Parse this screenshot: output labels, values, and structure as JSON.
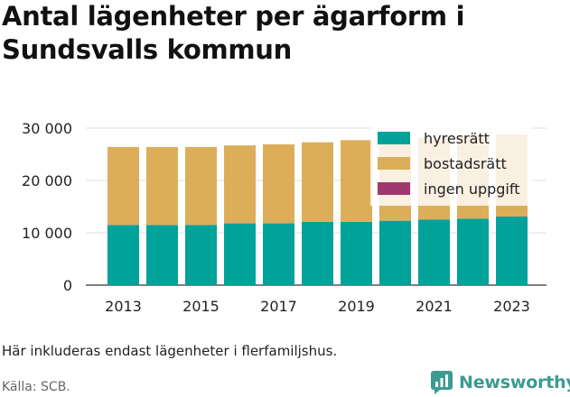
{
  "title": "Antal lägenheter per ägarform i Sundsvalls kommun",
  "note": "Här inkluderas endast lägenheter i flerfamiljshus.",
  "source": "Källa: SCB.",
  "brand": "Newsworthy",
  "colors": {
    "hyresratt": "#00a29a",
    "bostadsratt": "#dcae5a",
    "ingen_uppgift": "#a0376e",
    "grid": "#dddddd",
    "brand": "#3b9b8f"
  },
  "chart_data": {
    "type": "bar",
    "stacked": true,
    "categories": [
      "2013",
      "2014",
      "2015",
      "2016",
      "2017",
      "2018",
      "2019",
      "2020",
      "2021",
      "2022",
      "2023"
    ],
    "x_tick_labels": [
      "2013",
      "2015",
      "2017",
      "2019",
      "2021",
      "2023"
    ],
    "series": [
      {
        "name": "hyresrätt",
        "color": "#00a29a",
        "values": [
          11500,
          11500,
          11500,
          11800,
          11800,
          12100,
          12100,
          12300,
          12500,
          12700,
          13100
        ]
      },
      {
        "name": "bostadsrätt",
        "color": "#dcae5a",
        "values": [
          14900,
          14900,
          14900,
          14900,
          15100,
          15200,
          15600,
          15700,
          15700,
          15700,
          15700
        ]
      },
      {
        "name": "ingen uppgift",
        "color": "#a0376e",
        "values": [
          0,
          0,
          0,
          0,
          0,
          0,
          0,
          0,
          0,
          0,
          0
        ]
      }
    ],
    "y_ticks": [
      0,
      10000,
      20000,
      30000
    ],
    "y_tick_labels": [
      "0",
      "10 000",
      "20 000",
      "30 000"
    ],
    "ylim": [
      0,
      30000
    ],
    "grid": true,
    "legend_position": "top-right",
    "xlabel": "",
    "ylabel": ""
  }
}
